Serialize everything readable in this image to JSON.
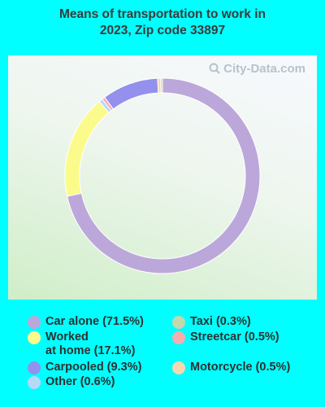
{
  "title_line1": "Means of transportation to work in",
  "title_line2": "2023, Zip code 33897",
  "watermark": "City-Data.com",
  "chart_data": {
    "type": "pie",
    "donut": true,
    "title": "Means of transportation to work in 2023, Zip code 33897",
    "slices": [
      {
        "label": "Car alone (71.5%)",
        "value": 71.5,
        "color": "#bca7da"
      },
      {
        "label": "Worked at home (17.1%)",
        "value": 17.1,
        "color": "#fbfb8c"
      },
      {
        "label": "Other (0.6%)",
        "value": 0.6,
        "color": "#b8d8f8"
      },
      {
        "label": "Streetcar (0.5%)",
        "value": 0.5,
        "color": "#f4aeb0"
      },
      {
        "label": "Carpooled (9.3%)",
        "value": 9.3,
        "color": "#9390ee"
      },
      {
        "label": "Motorcycle (0.5%)",
        "value": 0.5,
        "color": "#f5d8b0"
      },
      {
        "label": "Taxi (0.3%)",
        "value": 0.3,
        "color": "#c2d8ae"
      }
    ],
    "legend": [
      {
        "line1": "Car alone (71.5%)",
        "line2": "",
        "color": "#bca7da",
        "col": 0,
        "row": 0
      },
      {
        "line1": "Worked",
        "line2": "at home (17.1%)",
        "color": "#fbfb8c",
        "col": 0,
        "row": 1
      },
      {
        "line1": "Carpooled (9.3%)",
        "line2": "",
        "color": "#9390ee",
        "col": 0,
        "row": 3
      },
      {
        "line1": "Other (0.6%)",
        "line2": "",
        "color": "#b8d8f8",
        "col": 0,
        "row": 4
      },
      {
        "line1": "Taxi (0.3%)",
        "line2": "",
        "color": "#c2d8ae",
        "col": 1,
        "row": 0
      },
      {
        "line1": "Streetcar (0.5%)",
        "line2": "",
        "color": "#f4aeb0",
        "col": 1,
        "row": 1
      },
      {
        "line1": "Motorcycle (0.5%)",
        "line2": "",
        "color": "#f5d8b0",
        "col": 1,
        "row": 3
      }
    ],
    "legend_position": "bottom"
  }
}
